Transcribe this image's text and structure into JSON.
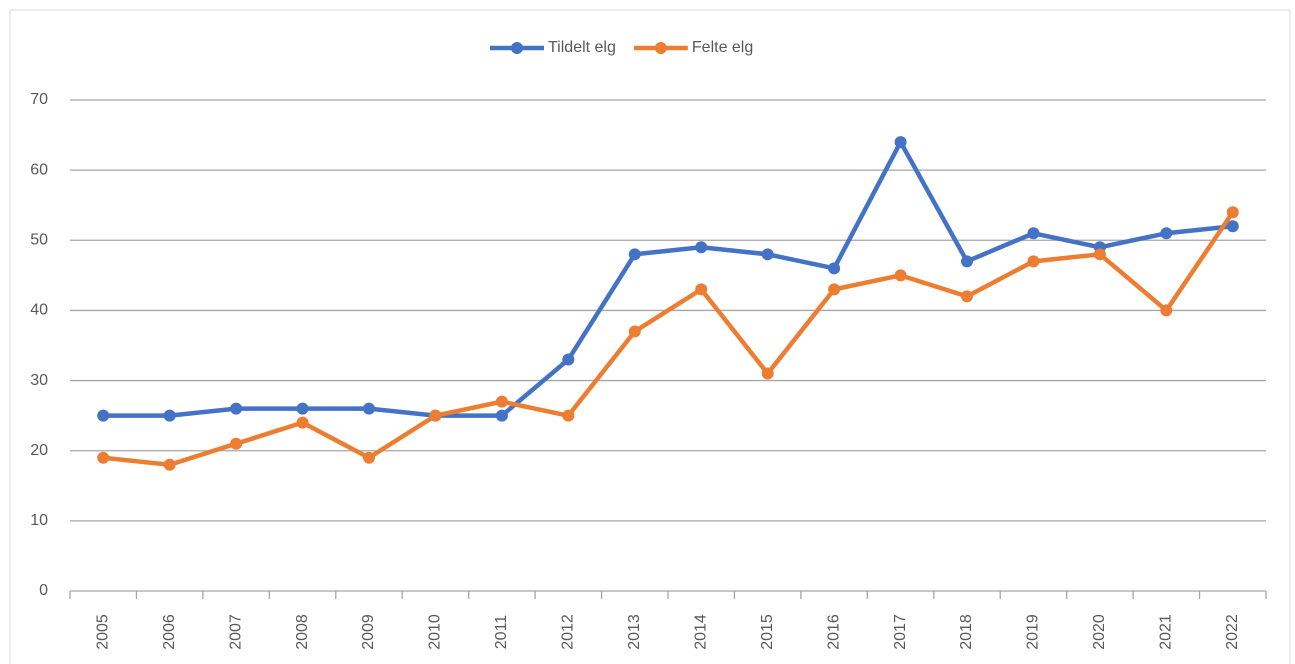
{
  "chart_data": {
    "type": "line",
    "categories": [
      "2005",
      "2006",
      "2007",
      "2008",
      "2009",
      "2010",
      "2011",
      "2012",
      "2013",
      "2014",
      "2015",
      "2016",
      "2017",
      "2018",
      "2019",
      "2020",
      "2021",
      "2022"
    ],
    "series": [
      {
        "name": "Tildelt elg",
        "color": "#4472c4",
        "values": [
          25,
          25,
          26,
          26,
          26,
          25,
          25,
          33,
          48,
          49,
          48,
          46,
          64,
          47,
          51,
          49,
          51,
          52
        ]
      },
      {
        "name": "Felte elg",
        "color": "#ed7d31",
        "values": [
          19,
          18,
          21,
          24,
          19,
          25,
          27,
          25,
          37,
          43,
          31,
          43,
          45,
          42,
          47,
          48,
          40,
          54
        ]
      }
    ],
    "ylim": [
      0,
      70
    ],
    "yticks": [
      0,
      10,
      20,
      30,
      40,
      50,
      60,
      70
    ],
    "grid": true,
    "legend": "top"
  }
}
